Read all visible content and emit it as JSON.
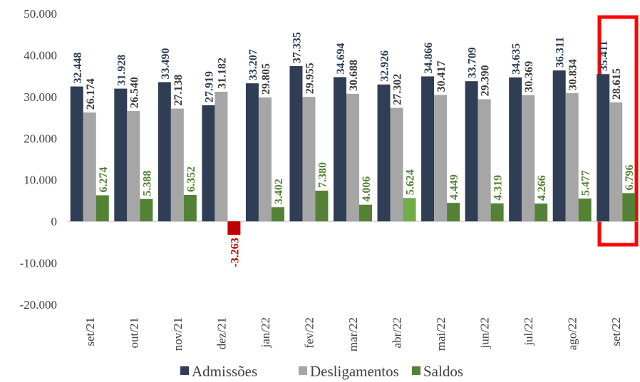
{
  "chart_data": {
    "type": "bar",
    "categories": [
      "set/21",
      "out/21",
      "nov/21",
      "dez/21",
      "jan/22",
      "fev/22",
      "mar/22",
      "abr/22",
      "mai/22",
      "jun/22",
      "jul/22",
      "ago/22",
      "set/22"
    ],
    "series": [
      {
        "name": "Admissões",
        "color": "#2f3d55",
        "label_color": "#2f3d55",
        "values": [
          32448,
          31928,
          33490,
          27919,
          33207,
          37335,
          34694,
          32926,
          34866,
          33709,
          34635,
          36311,
          35411
        ],
        "value_labels": [
          "32.448",
          "31.928",
          "33.490",
          "27.919",
          "33.207",
          "37.335",
          "34.694",
          "32.926",
          "34.866",
          "33.709",
          "34.635",
          "36.311",
          "35.411"
        ]
      },
      {
        "name": "Desligamentos",
        "color": "#a6a6a6",
        "label_color": "#3a3a3a",
        "values": [
          26174,
          26540,
          27138,
          31182,
          29805,
          29955,
          30688,
          27302,
          30417,
          29390,
          30369,
          30834,
          28615
        ],
        "value_labels": [
          "26.174",
          "26.540",
          "27.138",
          "31.182",
          "29.805",
          "29.955",
          "30.688",
          "27.302",
          "30.417",
          "29.390",
          "30.369",
          "30.834",
          "28.615"
        ]
      },
      {
        "name": "Saldos",
        "color": "#548235",
        "label_color": "#548235",
        "colors": [
          "#548235",
          "#548235",
          "#548235",
          "#c00000",
          "#548235",
          "#548235",
          "#548235",
          "#70ad47",
          "#548235",
          "#548235",
          "#548235",
          "#548235",
          "#548235"
        ],
        "values": [
          6274,
          5388,
          6352,
          -3263,
          3402,
          7380,
          4006,
          5624,
          4449,
          4319,
          4266,
          5477,
          6796
        ],
        "value_labels": [
          "6.274",
          "5.388",
          "6.352",
          "-3.263",
          "3.402",
          "7.380",
          "4.006",
          "5.624",
          "4.449",
          "4.319",
          "4.266",
          "5.477",
          "6.796"
        ]
      }
    ],
    "ylim": [
      -20000,
      50000
    ],
    "yticks": [
      {
        "value": -20000,
        "label": "-20.000"
      },
      {
        "value": -10000,
        "label": "-10.000"
      },
      0,
      {
        "value": 10000,
        "label": "10.000"
      },
      {
        "value": 20000,
        "label": "20.000"
      },
      {
        "value": 30000,
        "label": "30.000"
      },
      {
        "value": 40000,
        "label": "40.000"
      },
      {
        "value": 50000,
        "label": "50.000"
      }
    ],
    "grid": false,
    "legend": "bottom"
  }
}
